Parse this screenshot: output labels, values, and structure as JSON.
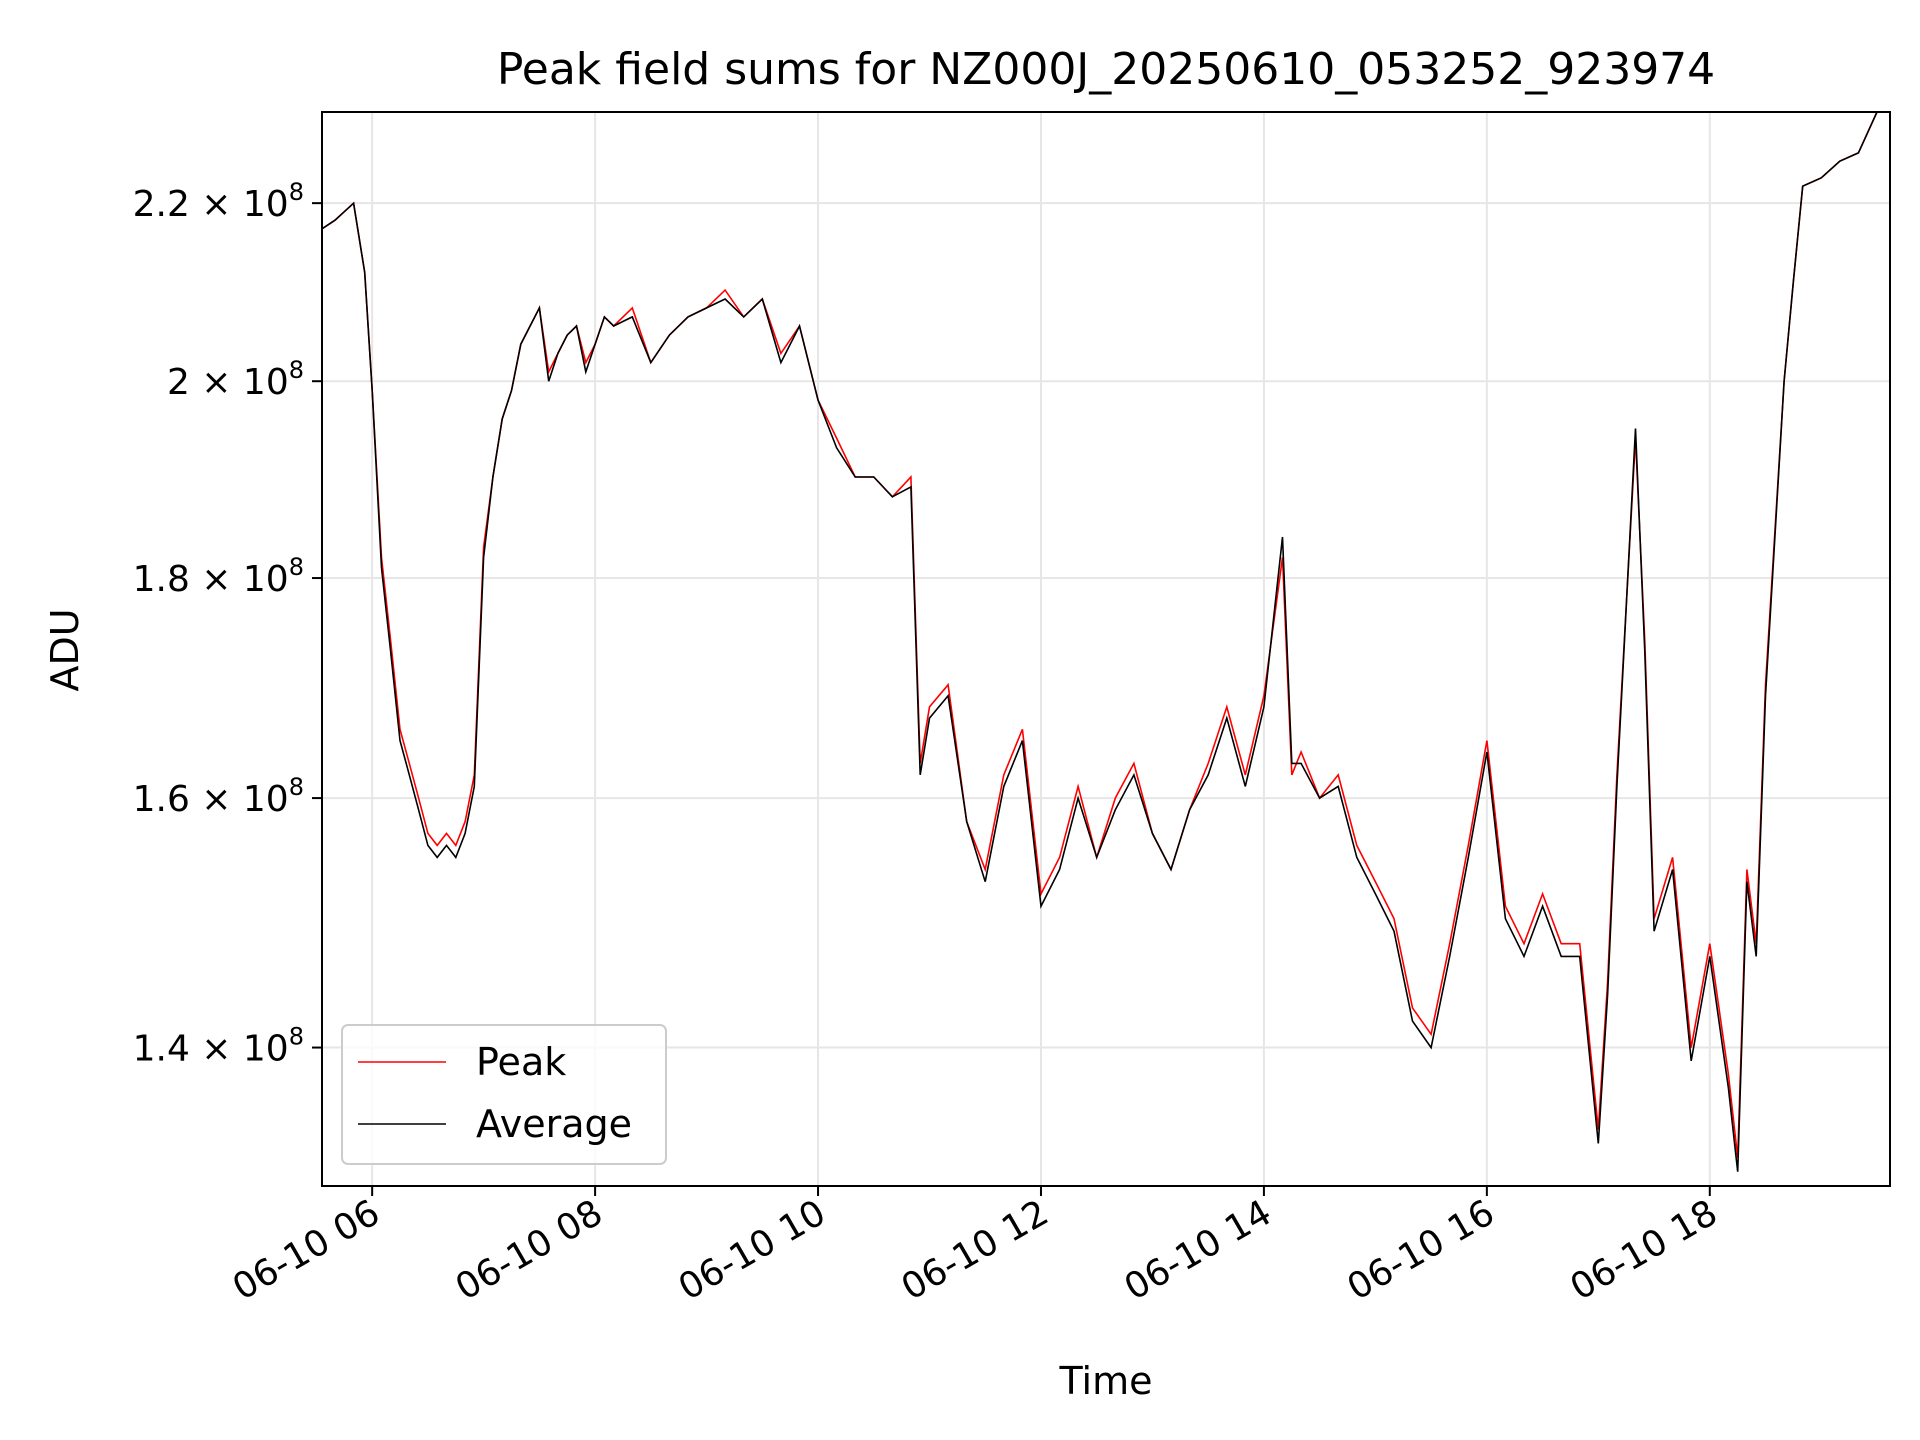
{
  "chart_data": {
    "type": "line",
    "title": "Peak field sums for NZ000J_20250610_053252_923974",
    "xlabel": "Time",
    "ylabel": "ADU",
    "y_scale": "log",
    "xlim": [
      "2025-06-10 05:33",
      "2025-06-10 19:37"
    ],
    "ylim": [
      130000000,
      231000000
    ],
    "grid": true,
    "legend_position": "lower-left",
    "x_tick_labels": [
      "06-10 06",
      "06-10 08",
      "06-10 10",
      "06-10 12",
      "06-10 14",
      "06-10 16",
      "06-10 18"
    ],
    "x_tick_times": [
      "2025-06-10 06:00",
      "2025-06-10 08:00",
      "2025-06-10 10:00",
      "2025-06-10 12:00",
      "2025-06-10 14:00",
      "2025-06-10 16:00",
      "2025-06-10 18:00"
    ],
    "y_ticks": [
      {
        "value": 140000000,
        "mantissa": "1.4",
        "exp": "8"
      },
      {
        "value": 160000000,
        "mantissa": "1.6",
        "exp": "8"
      },
      {
        "value": 180000000,
        "mantissa": "1.8",
        "exp": "8"
      },
      {
        "value": 200000000,
        "mantissa": "2",
        "exp": "8"
      },
      {
        "value": 220000000,
        "mantissa": "2.2",
        "exp": "8"
      }
    ],
    "times": [
      "2025-06-10 05:33",
      "2025-06-10 05:40",
      "2025-06-10 05:45",
      "2025-06-10 05:50",
      "2025-06-10 05:56",
      "2025-06-10 06:00",
      "2025-06-10 06:05",
      "2025-06-10 06:10",
      "2025-06-10 06:15",
      "2025-06-10 06:20",
      "2025-06-10 06:25",
      "2025-06-10 06:30",
      "2025-06-10 06:35",
      "2025-06-10 06:40",
      "2025-06-10 06:45",
      "2025-06-10 06:50",
      "2025-06-10 06:55",
      "2025-06-10 07:00",
      "2025-06-10 07:05",
      "2025-06-10 07:10",
      "2025-06-10 07:15",
      "2025-06-10 07:20",
      "2025-06-10 07:25",
      "2025-06-10 07:30",
      "2025-06-10 07:35",
      "2025-06-10 07:40",
      "2025-06-10 07:45",
      "2025-06-10 07:50",
      "2025-06-10 07:55",
      "2025-06-10 08:00",
      "2025-06-10 08:05",
      "2025-06-10 08:10",
      "2025-06-10 08:20",
      "2025-06-10 08:30",
      "2025-06-10 08:40",
      "2025-06-10 08:50",
      "2025-06-10 09:00",
      "2025-06-10 09:10",
      "2025-06-10 09:20",
      "2025-06-10 09:30",
      "2025-06-10 09:40",
      "2025-06-10 09:50",
      "2025-06-10 10:00",
      "2025-06-10 10:10",
      "2025-06-10 10:20",
      "2025-06-10 10:30",
      "2025-06-10 10:40",
      "2025-06-10 10:50",
      "2025-06-10 10:55",
      "2025-06-10 11:00",
      "2025-06-10 11:10",
      "2025-06-10 11:20",
      "2025-06-10 11:30",
      "2025-06-10 11:40",
      "2025-06-10 11:50",
      "2025-06-10 12:00",
      "2025-06-10 12:10",
      "2025-06-10 12:20",
      "2025-06-10 12:30",
      "2025-06-10 12:40",
      "2025-06-10 12:50",
      "2025-06-10 13:00",
      "2025-06-10 13:10",
      "2025-06-10 13:20",
      "2025-06-10 13:30",
      "2025-06-10 13:40",
      "2025-06-10 13:50",
      "2025-06-10 14:00",
      "2025-06-10 14:10",
      "2025-06-10 14:15",
      "2025-06-10 14:20",
      "2025-06-10 14:30",
      "2025-06-10 14:40",
      "2025-06-10 14:50",
      "2025-06-10 15:00",
      "2025-06-10 15:10",
      "2025-06-10 15:20",
      "2025-06-10 15:30",
      "2025-06-10 15:40",
      "2025-06-10 15:50",
      "2025-06-10 16:00",
      "2025-06-10 16:10",
      "2025-06-10 16:20",
      "2025-06-10 16:30",
      "2025-06-10 16:40",
      "2025-06-10 16:50",
      "2025-06-10 17:00",
      "2025-06-10 17:05",
      "2025-06-10 17:10",
      "2025-06-10 17:20",
      "2025-06-10 17:25",
      "2025-06-10 17:30",
      "2025-06-10 17:40",
      "2025-06-10 17:50",
      "2025-06-10 18:00",
      "2025-06-10 18:10",
      "2025-06-10 18:15",
      "2025-06-10 18:20",
      "2025-06-10 18:25",
      "2025-06-10 18:30",
      "2025-06-10 18:40",
      "2025-06-10 18:45",
      "2025-06-10 18:50",
      "2025-06-10 19:00",
      "2025-06-10 19:10",
      "2025-06-10 19:20",
      "2025-06-10 19:30",
      "2025-06-10 19:37"
    ],
    "series": [
      {
        "name": "Peak",
        "color": "#ff0000",
        "values": [
          217,
          218,
          219,
          220,
          212,
          199,
          182,
          174,
          166,
          163,
          160,
          157,
          156,
          157,
          156,
          158,
          162,
          183,
          190,
          196,
          199,
          204,
          206,
          208,
          201,
          203,
          205,
          206,
          202,
          204,
          207,
          206,
          208,
          202,
          205,
          207,
          208,
          210,
          207,
          209,
          203,
          206,
          198,
          194,
          190,
          190,
          188,
          190,
          163,
          168,
          170,
          158,
          154,
          162,
          166,
          152,
          155,
          161,
          155,
          160,
          163,
          157,
          154,
          159,
          163,
          168,
          162,
          169,
          182,
          162,
          164,
          160,
          162,
          156,
          153,
          150,
          143,
          141,
          148,
          156,
          165,
          151,
          148,
          152,
          148,
          148,
          134,
          145,
          162,
          194,
          174,
          150,
          155,
          140,
          148,
          138,
          132,
          154,
          148,
          170,
          200,
          211,
          222,
          223,
          225,
          226,
          231
        ]
      },
      {
        "name": "Average",
        "color": "#000000",
        "values": [
          217,
          218,
          219,
          220,
          212,
          199,
          181,
          173,
          165,
          162,
          159,
          156,
          155,
          156,
          155,
          157,
          161,
          182,
          190,
          196,
          199,
          204,
          206,
          208,
          200,
          203,
          205,
          206,
          201,
          204,
          207,
          206,
          207,
          202,
          205,
          207,
          208,
          209,
          207,
          209,
          202,
          206,
          198,
          193,
          190,
          190,
          188,
          189,
          162,
          167,
          169,
          158,
          153,
          161,
          165,
          151,
          154,
          160,
          155,
          159,
          162,
          157,
          154,
          159,
          162,
          167,
          161,
          168,
          184,
          163,
          163,
          160,
          161,
          155,
          152,
          149,
          142,
          140,
          147,
          155,
          164,
          150,
          147,
          151,
          147,
          147,
          133,
          144,
          161,
          195,
          173,
          149,
          154,
          139,
          147,
          137,
          131,
          153,
          147,
          169,
          200,
          211,
          222,
          223,
          225,
          226,
          231
        ]
      }
    ]
  }
}
